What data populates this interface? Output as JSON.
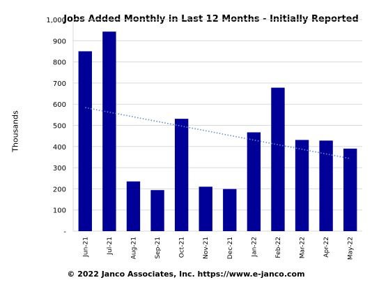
{
  "chart_data": {
    "type": "bar",
    "title": "Jobs Added Monthly in Last 12 Months - Initially Reported",
    "ylabel": "Thousands",
    "xlabel": "",
    "ylim": [
      0,
      1000
    ],
    "yticks": [
      "-",
      "100",
      "200",
      "300",
      "400",
      "500",
      "600",
      "700",
      "800",
      "900",
      "1,000"
    ],
    "categories": [
      "Jun-21",
      "Jul-21",
      "Aug-21",
      "Sep-21",
      "Oct-21",
      "Nov-21",
      "Dec-21",
      "Jan-22",
      "Feb-22",
      "Mar-22",
      "Apr-22",
      "May-22"
    ],
    "values": [
      850,
      943,
      235,
      194,
      531,
      210,
      199,
      467,
      678,
      431,
      428,
      390
    ],
    "trendline": {
      "style": "dotted linear",
      "start": 584,
      "end": 343
    },
    "grid": true,
    "bar_color": "#000099",
    "trend_color": "#5b8fc7"
  },
  "footer": "© 2022 Janco Associates, Inc.  https://www.e-janco.com"
}
